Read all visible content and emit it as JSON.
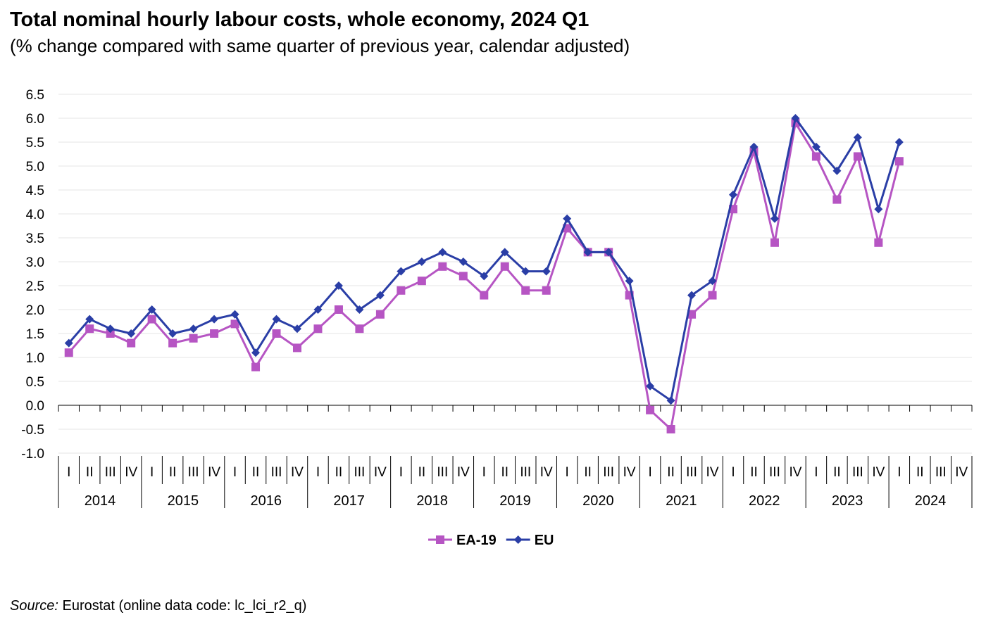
{
  "chart_data": {
    "type": "line",
    "title": "Total nominal hourly labour costs, whole economy, 2024 Q1",
    "subtitle": "(% change compared with same quarter of previous year, calendar adjusted)",
    "ylim": [
      -1.0,
      6.5
    ],
    "ystep": 0.5,
    "grid": true,
    "legend_position": "bottom-center",
    "years": [
      "2014",
      "2015",
      "2016",
      "2017",
      "2018",
      "2019",
      "2020",
      "2021",
      "2022",
      "2023",
      "2024"
    ],
    "quarters": [
      "I",
      "II",
      "III",
      "IV"
    ],
    "series": [
      {
        "name": "EA-19",
        "color": "#b655c3",
        "marker": "square",
        "values": [
          1.1,
          1.6,
          1.5,
          1.3,
          1.8,
          1.3,
          1.4,
          1.5,
          1.7,
          0.8,
          1.5,
          1.2,
          1.6,
          2.0,
          1.6,
          1.9,
          2.4,
          2.6,
          2.9,
          2.7,
          2.3,
          2.9,
          2.4,
          2.4,
          3.7,
          3.2,
          3.2,
          2.3,
          -0.1,
          -0.5,
          1.9,
          2.3,
          4.1,
          5.3,
          3.4,
          5.9,
          5.2,
          4.3,
          5.2,
          3.4,
          5.1
        ]
      },
      {
        "name": "EU",
        "color": "#2a3ea6",
        "marker": "diamond",
        "values": [
          1.3,
          1.8,
          1.6,
          1.5,
          2.0,
          1.5,
          1.6,
          1.8,
          1.9,
          1.1,
          1.8,
          1.6,
          2.0,
          2.5,
          2.0,
          2.3,
          2.8,
          3.0,
          3.2,
          3.0,
          2.7,
          3.2,
          2.8,
          2.8,
          3.9,
          3.2,
          3.2,
          2.6,
          0.4,
          0.1,
          2.3,
          2.6,
          4.4,
          5.4,
          3.9,
          6.0,
          5.4,
          4.9,
          5.6,
          4.1,
          5.5
        ]
      }
    ]
  },
  "source": {
    "label": "Source:",
    "text": " Eurostat (online data code: lc_lci_r2_q)"
  }
}
